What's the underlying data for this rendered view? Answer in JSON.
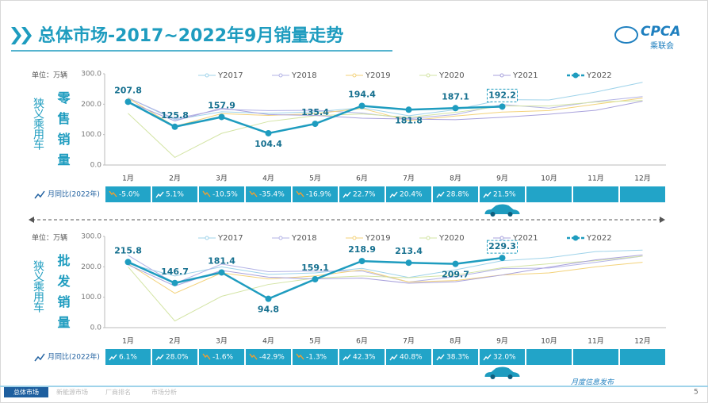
{
  "header": {
    "title": "总体市场-2017~2022年9月销量走势",
    "logo": "CPCA",
    "logo_sub": "乘联会"
  },
  "footer": {
    "tabs": [
      "总体市场",
      "新能源市场",
      "厂商排名",
      "市场分析"
    ],
    "note": "月度信息发布",
    "page": "5"
  },
  "chart_data": [
    {
      "type": "line",
      "category_label": "狭义乘用车",
      "title": "零售销量",
      "unit": "单位：万辆",
      "categories": [
        "1月",
        "2月",
        "3月",
        "4月",
        "5月",
        "6月",
        "7月",
        "8月",
        "9月",
        "10月",
        "11月",
        "12月"
      ],
      "ylim": [
        0,
        300
      ],
      "yticks": [
        {
          "value": 0,
          "label": "0.0"
        },
        {
          "value": 100,
          "label": "100.0"
        },
        {
          "value": 200,
          "label": "200.0"
        },
        {
          "value": 300,
          "label": "300.0"
        }
      ],
      "grid": false,
      "series": [
        {
          "name": "Y2017",
          "color": "#9fd3ea",
          "values": [
            221,
            149,
            175,
            170,
            175,
            188,
            162,
            182,
            215,
            214,
            240,
            272
          ]
        },
        {
          "name": "Y2018",
          "color": "#b3b3e6",
          "values": [
            221,
            152,
            183,
            179,
            180,
            171,
            153,
            166,
            199,
            187,
            209,
            225
          ]
        },
        {
          "name": "Y2019",
          "color": "#f3d27a",
          "values": [
            220,
            127,
            169,
            163,
            169,
            186,
            146,
            161,
            174,
            179,
            200,
            220
          ]
        },
        {
          "name": "Y2020",
          "color": "#d3e4a4",
          "values": [
            170,
            25,
            104,
            143,
            162,
            168,
            157,
            173,
            194,
            194,
            207,
            212
          ]
        },
        {
          "name": "Y2021",
          "color": "#a9a2dc",
          "values": [
            208,
            145,
            187,
            166,
            163,
            154,
            151,
            149,
            157,
            167,
            180,
            210
          ]
        },
        {
          "name": "Y2022",
          "color": "#1e9cbf",
          "values": [
            207.8,
            125.8,
            157.9,
            104.4,
            135.4,
            194.4,
            181.8,
            187.1,
            192.2,
            null,
            null,
            null
          ]
        }
      ],
      "yoy": {
        "label": "月同比(2022年)",
        "values": [
          -5.0,
          5.1,
          -10.5,
          -35.4,
          -16.9,
          22.7,
          20.4,
          28.8,
          21.5
        ],
        "value_labels": [
          "-5.0%",
          "5.1%",
          "-10.5%",
          "-35.4%",
          "-16.9%",
          "22.7%",
          "20.4%",
          "28.8%",
          "21.5%"
        ]
      }
    },
    {
      "type": "line",
      "category_label": "狭义乘用车",
      "title": "批发销量",
      "unit": "单位：万辆",
      "categories": [
        "1月",
        "2月",
        "3月",
        "4月",
        "5月",
        "6月",
        "7月",
        "8月",
        "9月",
        "10月",
        "11月",
        "12月"
      ],
      "ylim": [
        0,
        300
      ],
      "yticks": [
        {
          "value": 0,
          "label": "0.0"
        },
        {
          "value": 100,
          "label": "100.0"
        },
        {
          "value": 200,
          "label": "200.0"
        },
        {
          "value": 300,
          "label": "300.0"
        }
      ],
      "grid": false,
      "series": [
        {
          "name": "Y2017",
          "color": "#9fd3ea",
          "values": [
            210,
            170,
            200,
            175,
            180,
            195,
            165,
            190,
            220,
            230,
            250,
            255
          ]
        },
        {
          "name": "Y2018",
          "color": "#b3b3e6",
          "values": [
            238,
            145,
            209,
            184,
            186,
            186,
            150,
            168,
            194,
            196,
            215,
            235
          ]
        },
        {
          "name": "Y2019",
          "color": "#f3d27a",
          "values": [
            210,
            113,
            180,
            160,
            170,
            190,
            150,
            155,
            173,
            180,
            200,
            215
          ]
        },
        {
          "name": "Y2020",
          "color": "#d3e4a4",
          "values": [
            200,
            22,
            103,
            142,
            163,
            170,
            164,
            173,
            197,
            210,
            220,
            235
          ]
        },
        {
          "name": "Y2021",
          "color": "#a9a2dc",
          "values": [
            207,
            137,
            188,
            166,
            160,
            163,
            146,
            151,
            173,
            199,
            223,
            239
          ]
        },
        {
          "name": "Y2022",
          "color": "#1e9cbf",
          "values": [
            215.8,
            146.7,
            181.4,
            94.8,
            159.1,
            218.9,
            213.4,
            209.7,
            229.3,
            null,
            null,
            null
          ]
        }
      ],
      "yoy": {
        "label": "月同比(2022年)",
        "values": [
          6.1,
          28.0,
          -1.6,
          -42.9,
          -1.3,
          42.3,
          40.8,
          38.3,
          32.0
        ],
        "value_labels": [
          "6.1%",
          "28.0%",
          "-1.6%",
          "-42.9%",
          "-1.3%",
          "42.3%",
          "40.8%",
          "38.3%",
          "32.0%"
        ]
      }
    }
  ]
}
